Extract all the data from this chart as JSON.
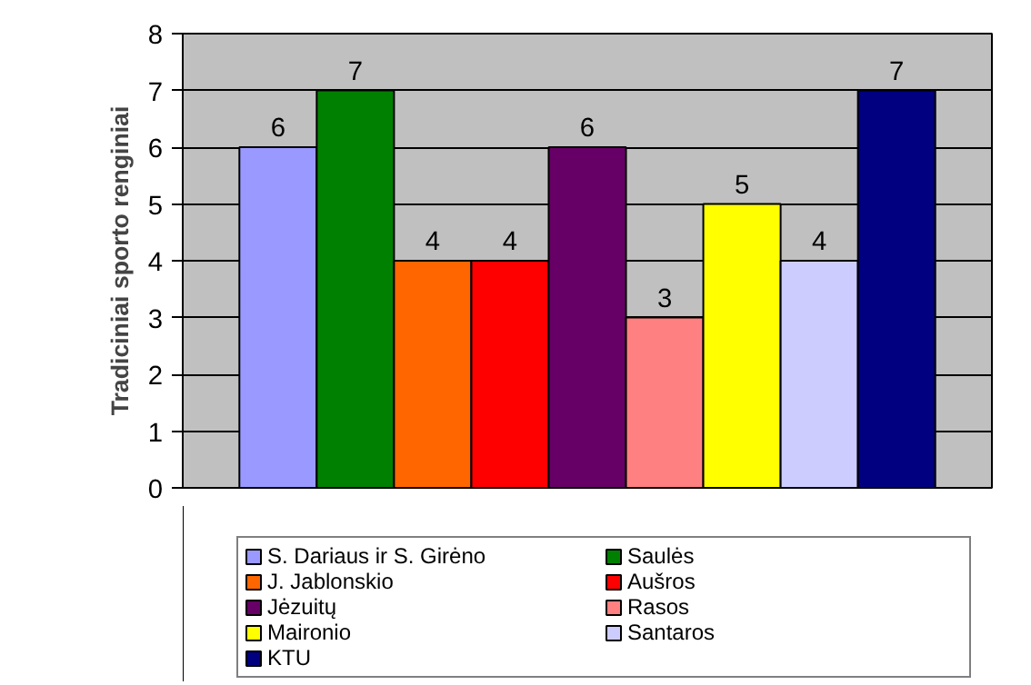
{
  "chart_data": {
    "type": "bar",
    "ylabel": "Tradiciniai sporto renginiai",
    "categories": [
      null
    ],
    "series": [
      {
        "name": "S. Dariaus ir S. Girėno",
        "color": "#9999ff",
        "values": [
          6
        ]
      },
      {
        "name": "Saulės",
        "color": "#008000",
        "values": [
          7
        ]
      },
      {
        "name": "J. Jablonskio",
        "color": "#ff6600",
        "values": [
          4
        ]
      },
      {
        "name": "Aušros",
        "color": "#ff0000",
        "values": [
          4
        ]
      },
      {
        "name": "Jėzuitų",
        "color": "#660066",
        "values": [
          6
        ]
      },
      {
        "name": "Rasos",
        "color": "#ff8080",
        "values": [
          3
        ]
      },
      {
        "name": "Maironio",
        "color": "#ffff00",
        "values": [
          5
        ]
      },
      {
        "name": "Santaros",
        "color": "#ccccff",
        "values": [
          4
        ]
      },
      {
        "name": "KTU",
        "color": "#000080",
        "values": [
          7
        ]
      }
    ],
    "ylim": [
      0,
      8
    ],
    "yticks": [
      0,
      1,
      2,
      3,
      4,
      5,
      6,
      7,
      8
    ],
    "grid": "y",
    "legend": "bottom",
    "data_labels": true
  }
}
